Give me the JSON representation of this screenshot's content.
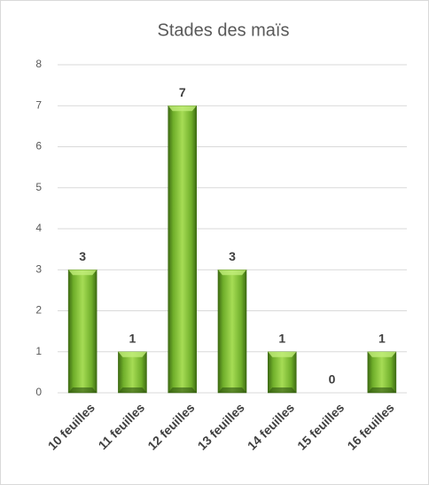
{
  "chart_data": {
    "type": "bar",
    "title": "Stades des maïs",
    "categories": [
      "10 feuilles",
      "11 feuilles",
      "12 feuilles",
      "13 feuilles",
      "14 feuilles",
      "15 feuilles",
      "16 feuilles"
    ],
    "values": [
      3,
      1,
      7,
      3,
      1,
      0,
      1
    ],
    "color": "#8cc63f",
    "ylim": [
      0,
      8
    ],
    "yticks": [
      0,
      1,
      2,
      3,
      4,
      5,
      6,
      7,
      8
    ],
    "grid": true,
    "data_labels": true
  }
}
